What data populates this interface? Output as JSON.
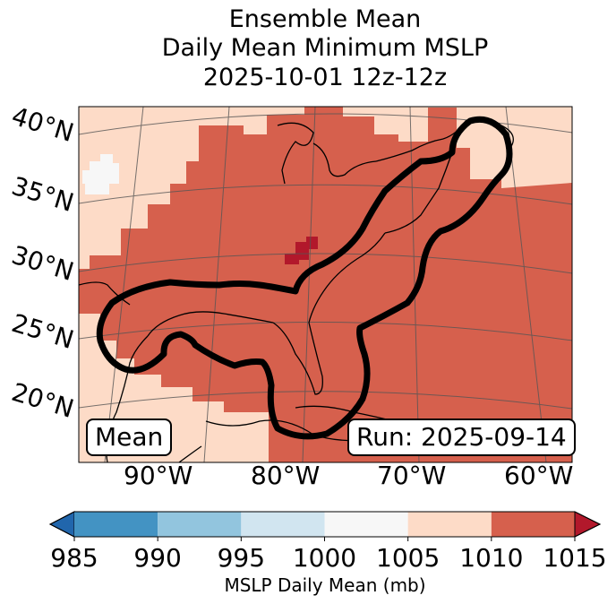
{
  "title": {
    "line1": "Ensemble Mean",
    "line2": "Daily Mean Minimum MSLP",
    "line3": "2025-10-01 12z-12z"
  },
  "map": {
    "lat_labels": [
      "40°N",
      "35°N",
      "30°N",
      "25°N",
      "20°N"
    ],
    "lon_labels": [
      "90°W",
      "80°W",
      "70°W",
      "60°W"
    ],
    "mean_box": "Mean",
    "run_box": "Run: 2025-09-14",
    "contour_color": "#000000",
    "field_colors": {
      "1005-1010": "#fddbc7",
      "1010-1015": "#d6604d",
      "above-1015": "#b2182b",
      "1000-1005": "#f7f7f7"
    }
  },
  "colorbar": {
    "ticks": [
      "985",
      "990",
      "995",
      "1000",
      "1005",
      "1010",
      "1015"
    ],
    "label": "MSLP Daily Mean (mb)",
    "colors": [
      "#4393c3",
      "#92c5de",
      "#d1e5f0",
      "#f7f7f7",
      "#fddbc7",
      "#d6604d"
    ],
    "under_color": "#2166ac",
    "over_color": "#b2182b"
  }
}
